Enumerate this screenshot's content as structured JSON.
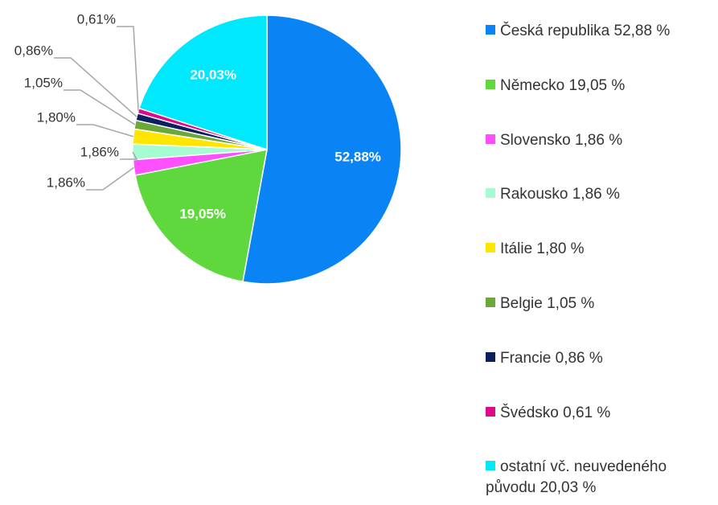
{
  "chart_data": {
    "type": "pie",
    "categories": [
      "Česká republika 52,88 %",
      "Německo 19,05 %",
      "Slovensko 1,86 %",
      "Rakousko 1,86 %",
      "Itálie 1,80 %",
      "Belgie 1,05 %",
      "Francie 0,86 %",
      "Švédsko 0,61 %",
      "ostatní vč. neuvedeného původu 20,03 %"
    ],
    "values": [
      52.88,
      19.05,
      1.86,
      1.86,
      1.8,
      1.05,
      0.86,
      0.61,
      20.03
    ],
    "value_labels": [
      "52,88%",
      "19,05%",
      "1,86%",
      "1,86%",
      "1,80%",
      "1,05%",
      "0,86%",
      "0,61%",
      "20,03%"
    ],
    "colors": [
      "#0a84f5",
      "#5fd83e",
      "#ff50ff",
      "#a6fcd2",
      "#ffe600",
      "#6aa83a",
      "#0c1f5e",
      "#de0a8c",
      "#00e8fc"
    ],
    "legend": "right"
  }
}
